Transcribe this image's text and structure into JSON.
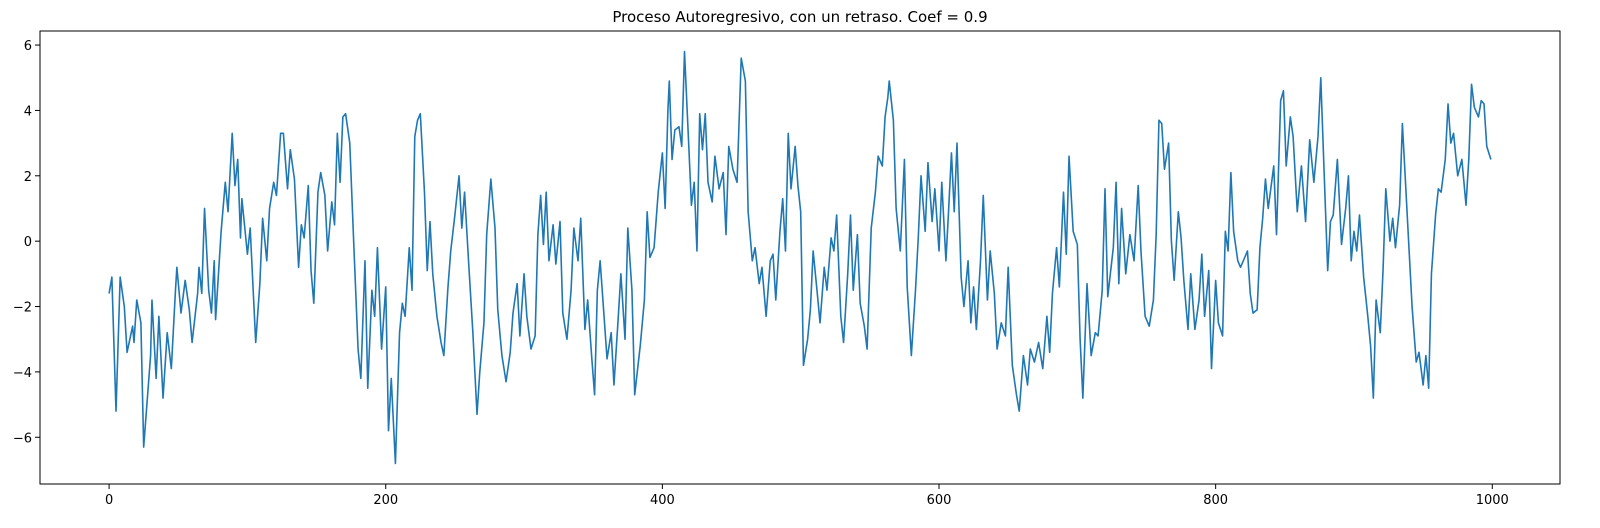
{
  "chart_data": {
    "type": "line",
    "title": "Proceso Autoregresivo, con un retraso. Coef = 0.9",
    "color": "#1f77b4",
    "x": [
      0,
      2,
      5,
      8,
      11,
      13,
      17,
      18,
      20,
      23,
      25,
      30,
      31,
      34,
      36,
      39,
      42,
      45,
      48,
      49,
      52,
      55,
      58,
      60,
      64,
      65,
      67,
      69,
      72,
      74,
      76,
      77,
      81,
      84,
      86,
      89,
      91,
      93,
      95,
      96,
      100,
      102,
      106,
      109,
      111,
      114,
      116,
      119,
      121,
      124,
      126,
      129,
      131,
      134,
      137,
      139,
      141,
      144,
      146,
      148,
      151,
      153,
      156,
      158,
      161,
      163,
      165,
      167,
      169,
      171,
      174,
      177,
      180,
      182,
      185,
      187,
      190,
      192,
      194,
      197,
      200,
      202,
      204,
      207,
      210,
      212,
      214,
      217,
      219,
      221,
      223,
      225,
      228,
      230,
      232,
      234,
      237,
      240,
      242,
      245,
      247,
      250,
      253,
      255,
      257,
      260,
      263,
      266,
      268,
      271,
      273,
      276,
      279,
      281,
      284,
      287,
      290,
      292,
      295,
      297,
      300,
      302,
      305,
      308,
      310,
      312,
      314,
      316,
      318,
      321,
      323,
      326,
      328,
      331,
      334,
      336,
      339,
      341,
      344,
      346,
      349,
      351,
      353,
      355,
      358,
      360,
      363,
      365,
      368,
      370,
      373,
      375,
      378,
      380,
      384,
      387,
      389,
      391,
      394,
      397,
      400,
      402,
      404,
      405,
      407,
      409,
      412,
      414,
      416,
      419,
      421,
      423,
      425,
      427,
      429,
      431,
      433,
      436,
      438,
      441,
      444,
      446,
      448,
      451,
      454,
      457,
      460,
      462,
      465,
      467,
      470,
      472,
      475,
      478,
      480,
      482,
      485,
      487,
      489,
      491,
      493,
      496,
      498,
      500,
      502,
      505,
      507,
      509,
      512,
      514,
      517,
      519,
      522,
      524,
      526,
      529,
      531,
      534,
      536,
      538,
      541,
      543,
      546,
      548,
      551,
      554,
      556,
      559,
      561,
      563,
      564,
      567,
      569,
      572,
      575,
      577,
      580,
      583,
      585,
      587,
      590,
      592,
      595,
      597,
      600,
      602,
      605,
      607,
      609,
      611,
      613,
      616,
      618,
      621,
      623,
      625,
      627,
      630,
      632,
      635,
      637,
      640,
      642,
      645,
      648,
      650,
      653,
      656,
      658,
      661,
      664,
      666,
      669,
      672,
      675,
      678,
      680,
      682,
      685,
      687,
      690,
      692,
      694,
      697,
      700,
      702,
      704,
      707,
      710,
      713,
      715,
      718,
      720,
      722,
      726,
      728,
      730,
      732,
      735,
      738,
      741,
      744,
      746,
      749,
      752,
      755,
      757,
      759,
      761,
      763,
      766,
      768,
      770,
      773,
      775,
      777,
      780,
      782,
      785,
      788,
      790,
      792,
      795,
      797,
      800,
      802,
      805,
      807,
      809,
      811,
      813,
      816,
      818,
      821,
      823,
      825,
      827,
      830,
      832,
      834,
      836,
      838,
      842,
      844,
      847,
      849,
      851,
      854,
      856,
      859,
      862,
      865,
      868,
      871,
      874,
      876,
      878,
      881,
      883,
      885,
      888,
      891,
      894,
      896,
      898,
      900,
      902,
      904,
      907,
      910,
      912,
      914,
      916,
      919,
      921,
      923,
      926,
      928,
      930,
      933,
      935,
      937,
      940,
      942,
      945,
      947,
      950,
      952,
      954,
      956,
      959,
      961,
      963,
      966,
      968,
      970,
      972,
      975,
      978,
      981,
      983,
      985,
      987,
      990,
      992,
      994,
      996,
      999
    ],
    "values": [
      -1.6,
      -1.1,
      -5.2,
      -1.1,
      -2.0,
      -3.4,
      -2.6,
      -3.1,
      -1.8,
      -2.5,
      -6.3,
      -3.5,
      -1.8,
      -4.2,
      -2.3,
      -4.8,
      -2.8,
      -3.9,
      -1.5,
      -0.8,
      -2.2,
      -1.2,
      -2.1,
      -3.1,
      -1.6,
      -0.8,
      -1.6,
      1.0,
      -1.5,
      -2.2,
      -0.6,
      -2.4,
      0.3,
      1.8,
      0.9,
      3.3,
      1.7,
      2.5,
      0.1,
      1.3,
      -0.4,
      0.4,
      -3.1,
      -1.3,
      0.7,
      -0.6,
      1.0,
      1.8,
      1.4,
      3.3,
      3.3,
      1.6,
      2.8,
      1.9,
      -0.8,
      0.5,
      0.1,
      1.7,
      -0.9,
      -1.9,
      1.5,
      2.1,
      1.4,
      -0.3,
      1.2,
      0.5,
      3.3,
      1.8,
      3.8,
      3.9,
      3.0,
      -0.2,
      -3.3,
      -4.2,
      -0.6,
      -4.5,
      -1.5,
      -2.3,
      -0.2,
      -3.3,
      -1.4,
      -5.8,
      -4.2,
      -6.8,
      -2.8,
      -1.9,
      -2.3,
      -0.2,
      -1.5,
      3.2,
      3.7,
      3.9,
      1.5,
      -0.9,
      0.6,
      -1.0,
      -2.3,
      -3.1,
      -3.5,
      -1.4,
      -0.3,
      0.8,
      2.0,
      0.4,
      1.5,
      -0.7,
      -2.8,
      -5.3,
      -4.0,
      -2.5,
      0.2,
      1.9,
      0.4,
      -2.1,
      -3.5,
      -4.3,
      -3.4,
      -2.2,
      -1.3,
      -2.9,
      -1.0,
      -2.3,
      -3.3,
      -2.9,
      0.2,
      1.4,
      -0.1,
      1.5,
      -0.6,
      0.5,
      -0.7,
      0.6,
      -2.2,
      -3.0,
      -1.5,
      0.4,
      -0.6,
      0.7,
      -2.7,
      -1.8,
      -3.6,
      -4.7,
      -1.5,
      -0.6,
      -2.4,
      -3.6,
      -2.8,
      -4.4,
      -2.4,
      -1.0,
      -3.0,
      0.4,
      -1.5,
      -4.7,
      -3.2,
      -1.8,
      0.9,
      -0.5,
      -0.2,
      1.5,
      2.7,
      1.0,
      4.0,
      4.9,
      2.5,
      3.4,
      3.5,
      2.9,
      5.8,
      3.0,
      1.1,
      1.8,
      -0.3,
      3.9,
      2.8,
      3.9,
      1.8,
      1.2,
      2.6,
      1.6,
      2.1,
      0.2,
      2.9,
      2.2,
      1.8,
      5.6,
      4.9,
      0.9,
      -0.6,
      -0.2,
      -1.3,
      -0.8,
      -2.3,
      -0.6,
      -0.4,
      -1.8,
      0.3,
      1.3,
      -0.3,
      3.3,
      1.6,
      2.9,
      1.7,
      0.9,
      -3.8,
      -3.0,
      -2.1,
      -0.3,
      -1.6,
      -2.5,
      -0.8,
      -1.5,
      0.1,
      -0.3,
      0.8,
      -2.3,
      -3.1,
      -1.0,
      0.8,
      -1.5,
      0.2,
      -1.9,
      -2.6,
      -3.3,
      0.4,
      1.5,
      2.6,
      2.3,
      3.8,
      4.4,
      4.9,
      3.7,
      1.0,
      -0.3,
      2.5,
      -1.4,
      -3.5,
      -1.5,
      0.1,
      2.0,
      0.3,
      2.4,
      0.6,
      1.6,
      -0.3,
      1.8,
      -0.6,
      1.0,
      2.7,
      0.9,
      3.0,
      -1.1,
      -2.0,
      -0.6,
      -2.5,
      -1.4,
      -2.7,
      -0.6,
      1.4,
      -1.8,
      -0.3,
      -1.6,
      -3.3,
      -2.5,
      -2.9,
      -0.8,
      -3.8,
      -4.7,
      -5.2,
      -3.5,
      -4.4,
      -3.3,
      -3.7,
      -3.1,
      -3.9,
      -2.3,
      -3.4,
      -1.6,
      -0.2,
      -1.4,
      1.5,
      -0.4,
      2.6,
      0.3,
      -0.1,
      -3.0,
      -4.8,
      -1.3,
      -3.5,
      -2.8,
      -2.9,
      -1.5,
      1.6,
      -1.7,
      -0.2,
      1.8,
      -1.3,
      1.0,
      -1.0,
      0.2,
      -0.6,
      1.7,
      -0.3,
      -2.3,
      -2.6,
      -1.8,
      0.2,
      3.7,
      3.6,
      2.2,
      3.0,
      0.0,
      -1.2,
      0.9,
      0.1,
      -1.2,
      -2.7,
      -1.0,
      -2.7,
      -1.8,
      -0.4,
      -2.3,
      -0.9,
      -3.9,
      -1.2,
      -2.5,
      -2.9,
      0.3,
      -0.3,
      2.1,
      0.3,
      -0.6,
      -0.8,
      -0.5,
      -0.3,
      -1.6,
      -2.2,
      -2.1,
      -0.2,
      0.7,
      1.9,
      1.0,
      2.3,
      0.2,
      4.3,
      4.6,
      2.3,
      3.8,
      3.2,
      0.9,
      2.3,
      0.6,
      3.1,
      1.8,
      3.2,
      5.0,
      2.6,
      -0.9,
      0.6,
      0.8,
      2.5,
      -0.1,
      1.0,
      2.0,
      -0.6,
      0.3,
      -0.3,
      0.8,
      -1.1,
      -2.3,
      -3.2,
      -4.8,
      -1.8,
      -2.8,
      -0.9,
      1.6,
      0.0,
      0.7,
      -0.2,
      1.1,
      3.6,
      2.0,
      -0.4,
      -2.0,
      -3.7,
      -3.4,
      -4.4,
      -3.5,
      -4.5,
      -1.0,
      0.8,
      1.6,
      1.5,
      2.5,
      4.2,
      3.0,
      3.3,
      2.0,
      2.5,
      1.1,
      2.5,
      4.8,
      4.1,
      3.8,
      4.3,
      4.2,
      2.9,
      2.5
    ],
    "xlim": [
      -49.95,
      1048.95
    ],
    "ylim": [
      -7.43,
      6.43
    ],
    "xticks": [
      0,
      200,
      400,
      600,
      800,
      1000
    ],
    "yticks": [
      {
        "value": -6,
        "label": "−6"
      },
      {
        "value": -4,
        "label": "−4"
      },
      {
        "value": -2,
        "label": "−2"
      },
      0,
      2,
      4,
      6
    ]
  }
}
